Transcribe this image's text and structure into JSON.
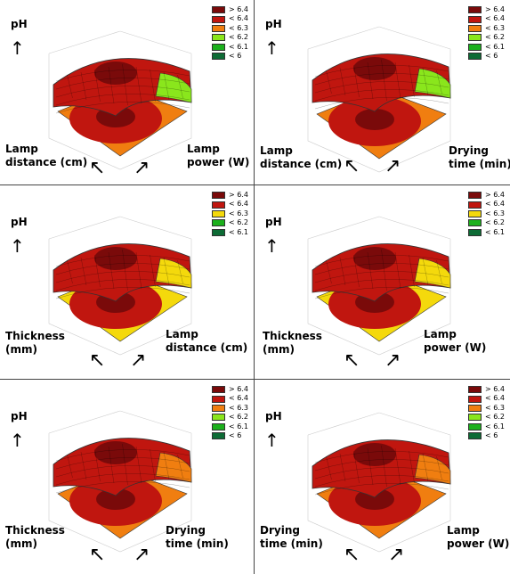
{
  "colors": {
    "c_gt64": "#7a0a0a",
    "c_lt64": "#c0160f",
    "c_lt63": "#f07e10",
    "c_lt63_yellow": "#f4d90c",
    "c_lt62": "#8ae61c",
    "c_lt61": "#1cb01c",
    "c_lt6": "#0d6b35"
  },
  "chart_data": [
    {
      "type": "surface",
      "zlabel": "pH",
      "xlabel": "Lamp distance (cm)",
      "ylabel": "Lamp power (W)",
      "legend": [
        "> 6.4",
        "< 6.4",
        "< 6.3",
        "< 6.2",
        "< 6.1",
        "< 6"
      ],
      "legend_position": "top-right"
    },
    {
      "type": "surface",
      "zlabel": "pH",
      "xlabel": "Lamp distance (cm)",
      "ylabel": "Drying time (min)",
      "legend": [
        "> 6.4",
        "< 6.4",
        "< 6.3",
        "< 6.2",
        "< 6.1",
        "< 6"
      ],
      "legend_position": "top-right"
    },
    {
      "type": "surface",
      "zlabel": "pH",
      "xlabel": "Thickness (mm)",
      "ylabel": "Lamp distance (cm)",
      "legend": [
        "> 6.4",
        "< 6.4",
        "< 6.3",
        "< 6.2",
        "< 6.1"
      ],
      "legend_position": "top-right"
    },
    {
      "type": "surface",
      "zlabel": "pH",
      "xlabel": "Thickness (mm)",
      "ylabel": "Lamp power (W)",
      "legend": [
        "> 6.4",
        "< 6.4",
        "< 6.3",
        "< 6.2",
        "< 6.1"
      ],
      "legend_position": "top-right"
    },
    {
      "type": "surface",
      "zlabel": "pH",
      "xlabel": "Thickness (mm)",
      "ylabel": "Drying time (min)",
      "legend": [
        "> 6.4",
        "< 6.4",
        "< 6.3",
        "< 6.2",
        "< 6.1",
        "< 6"
      ],
      "legend_position": "top-right"
    },
    {
      "type": "surface",
      "zlabel": "pH",
      "xlabel": "Drying time (min)",
      "ylabel": "Lamp power (W)",
      "legend": [
        "> 6.4",
        "< 6.4",
        "< 6.3",
        "< 6.2",
        "< 6.1",
        "< 6"
      ],
      "legend_position": "top-right"
    }
  ],
  "panels": [
    {
      "z": "pH",
      "left": [
        "Lamp",
        "distance (cm)"
      ],
      "right": [
        "Lamp",
        "power (W)"
      ]
    },
    {
      "z": "pH",
      "left": [
        "Lamp",
        "distance (cm)"
      ],
      "right": [
        "Drying",
        "time (min)"
      ]
    },
    {
      "z": "pH",
      "left": [
        "Thickness",
        "(mm)"
      ],
      "right": [
        "Lamp",
        "distance (cm)"
      ]
    },
    {
      "z": "pH",
      "left": [
        "Thickness",
        "(mm)"
      ],
      "right": [
        "Lamp",
        "power (W)"
      ]
    },
    {
      "z": "pH",
      "left": [
        "Thickness",
        "(mm)"
      ],
      "right": [
        "Drying",
        "time (min)"
      ]
    },
    {
      "z": "pH",
      "left": [
        "Drying",
        "time (min)"
      ],
      "right": [
        "Lamp",
        "power (W)"
      ]
    }
  ],
  "legends": [
    [
      [
        "> 6.4",
        "c_gt64"
      ],
      [
        "< 6.4",
        "c_lt64"
      ],
      [
        "< 6.3",
        "c_lt63"
      ],
      [
        "< 6.2",
        "c_lt62"
      ],
      [
        "< 6.1",
        "c_lt61"
      ],
      [
        "< 6",
        "c_lt6"
      ]
    ],
    [
      [
        "> 6.4",
        "c_gt64"
      ],
      [
        "< 6.4",
        "c_lt64"
      ],
      [
        "< 6.3",
        "c_lt63"
      ],
      [
        "< 6.2",
        "c_lt62"
      ],
      [
        "< 6.1",
        "c_lt61"
      ],
      [
        "< 6",
        "c_lt6"
      ]
    ],
    [
      [
        "> 6.4",
        "c_gt64"
      ],
      [
        "< 6.4",
        "c_lt64"
      ],
      [
        "< 6.3",
        "c_lt63_yellow"
      ],
      [
        "< 6.2",
        "c_lt61"
      ],
      [
        "< 6.1",
        "c_lt6"
      ]
    ],
    [
      [
        "> 6.4",
        "c_gt64"
      ],
      [
        "< 6.4",
        "c_lt64"
      ],
      [
        "< 6.3",
        "c_lt63_yellow"
      ],
      [
        "< 6.2",
        "c_lt61"
      ],
      [
        "< 6.1",
        "c_lt6"
      ]
    ],
    [
      [
        "> 6.4",
        "c_gt64"
      ],
      [
        "< 6.4",
        "c_lt64"
      ],
      [
        "< 6.3",
        "c_lt63"
      ],
      [
        "< 6.2",
        "c_lt62"
      ],
      [
        "< 6.1",
        "c_lt61"
      ],
      [
        "< 6",
        "c_lt6"
      ]
    ],
    [
      [
        "> 6.4",
        "c_gt64"
      ],
      [
        "< 6.4",
        "c_lt64"
      ],
      [
        "< 6.3",
        "c_lt63"
      ],
      [
        "< 6.2",
        "c_lt62"
      ],
      [
        "< 6.1",
        "c_lt61"
      ],
      [
        "< 6",
        "c_lt6"
      ]
    ]
  ]
}
